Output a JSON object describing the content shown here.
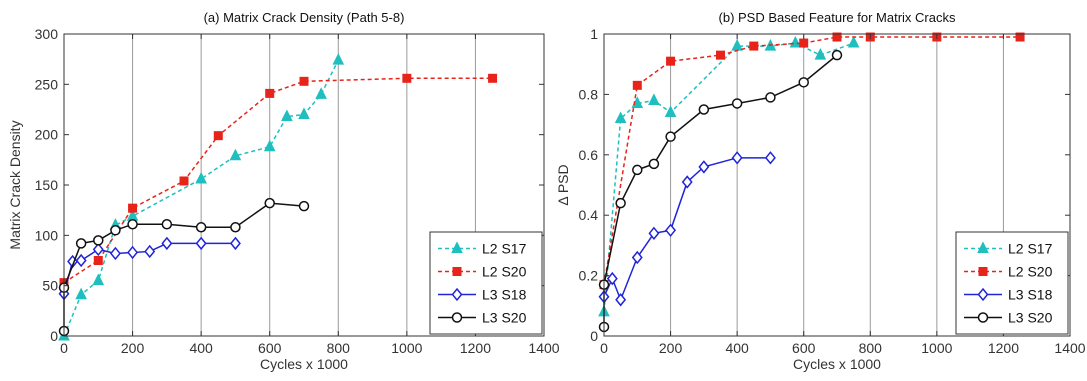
{
  "chart_data": [
    {
      "type": "line",
      "title": "(a) Matrix Crack Density (Path 5-8)",
      "xlabel": "Cycles x 1000",
      "ylabel": "Matrix Crack Density",
      "xlim": [
        0,
        1400
      ],
      "ylim": [
        0,
        300
      ],
      "xticks": [
        0,
        200,
        400,
        600,
        800,
        1000,
        1200,
        1400
      ],
      "yticks": [
        0,
        50,
        100,
        150,
        200,
        250,
        300
      ],
      "grid": "vertical",
      "legend_position": "bottom-right",
      "series": [
        {
          "name": "L2 S17",
          "color": "#1fbfbf",
          "marker": "triangle",
          "x": [
            0,
            50,
            100,
            150,
            200,
            400,
            500,
            600,
            650,
            700,
            750,
            800
          ],
          "y": [
            0,
            41,
            55,
            110,
            119,
            156,
            179,
            188,
            218,
            220,
            240,
            274
          ]
        },
        {
          "name": "L2 S20",
          "color": "#e8231a",
          "marker": "square",
          "x": [
            0,
            100,
            200,
            350,
            450,
            600,
            700,
            1000,
            1250
          ],
          "y": [
            53,
            75,
            127,
            154,
            199,
            241,
            253,
            256,
            256
          ]
        },
        {
          "name": "L3 S18",
          "color": "#1f24d8",
          "marker": "diamond",
          "x": [
            0,
            25,
            50,
            100,
            150,
            200,
            250,
            300,
            400,
            500
          ],
          "y": [
            42,
            74,
            75,
            86,
            82,
            83,
            84,
            92,
            92,
            92
          ]
        },
        {
          "name": "L3 S20",
          "color": "#111111",
          "marker": "circle",
          "x": [
            0,
            0,
            50,
            100,
            150,
            200,
            300,
            400,
            500,
            600,
            700
          ],
          "y": [
            5,
            48,
            92,
            95,
            105,
            111,
            111,
            108,
            108,
            132,
            129
          ]
        }
      ]
    },
    {
      "type": "line",
      "title": "(b) PSD Based Feature for Matrix Cracks",
      "xlabel": "Cycles x 1000",
      "ylabel": "Δ PSD",
      "xlim": [
        0,
        1400
      ],
      "ylim": [
        0,
        1
      ],
      "xticks": [
        0,
        200,
        400,
        600,
        800,
        1000,
        1200,
        1400
      ],
      "yticks": [
        0,
        0.2,
        0.4,
        0.6,
        0.8,
        1
      ],
      "grid": "vertical",
      "legend_position": "bottom-right",
      "series": [
        {
          "name": "L2 S17",
          "color": "#1fbfbf",
          "marker": "triangle",
          "x": [
            0,
            50,
            100,
            150,
            200,
            400,
            500,
            575,
            650,
            750
          ],
          "y": [
            0.08,
            0.72,
            0.77,
            0.78,
            0.74,
            0.96,
            0.96,
            0.97,
            0.93,
            0.97
          ]
        },
        {
          "name": "L2 S20",
          "color": "#e8231a",
          "marker": "square",
          "x": [
            0,
            100,
            200,
            350,
            450,
            600,
            700,
            800,
            1000,
            1250
          ],
          "y": [
            0.17,
            0.83,
            0.91,
            0.93,
            0.96,
            0.97,
            0.99,
            0.99,
            0.99,
            0.99
          ]
        },
        {
          "name": "L3 S18",
          "color": "#1f24d8",
          "marker": "diamond",
          "x": [
            0,
            25,
            50,
            100,
            150,
            200,
            250,
            300,
            400,
            500
          ],
          "y": [
            0.13,
            0.19,
            0.12,
            0.26,
            0.34,
            0.35,
            0.51,
            0.56,
            0.59,
            0.59
          ]
        },
        {
          "name": "L3 S20",
          "color": "#111111",
          "marker": "circle",
          "x": [
            0,
            0,
            50,
            100,
            150,
            200,
            300,
            400,
            500,
            600,
            700
          ],
          "y": [
            0.03,
            0.17,
            0.44,
            0.55,
            0.57,
            0.66,
            0.75,
            0.77,
            0.79,
            0.84,
            0.93
          ]
        }
      ]
    }
  ]
}
